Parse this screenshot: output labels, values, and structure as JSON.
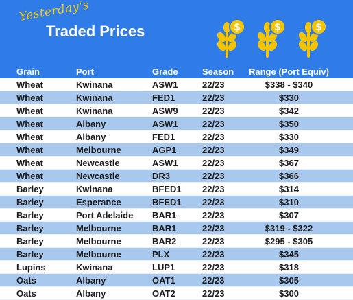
{
  "header": {
    "subtitle": "Yesterday's",
    "title": "Traded Prices",
    "icons": [
      "wheat-coin-icon",
      "wheat-coin-icon",
      "wheat-coin-icon"
    ]
  },
  "colors": {
    "header_blue": "#2f7be8",
    "row_alt": "#a9c8ee",
    "accent_yellow": "#f5c400"
  },
  "table": {
    "columns": [
      "Grain",
      "Port",
      "Grade",
      "Season",
      "Range (Port Equiv)"
    ],
    "rows": [
      [
        "Wheat",
        "Kwinana",
        "ASW1",
        "22/23",
        "$338 - $340"
      ],
      [
        "Wheat",
        "Kwinana",
        "FED1",
        "22/23",
        "$330"
      ],
      [
        "Wheat",
        "Kwinana",
        "ASW9",
        "22/23",
        "$342"
      ],
      [
        "Wheat",
        "Albany",
        "ASW1",
        "22/23",
        "$350"
      ],
      [
        "Wheat",
        "Albany",
        "FED1",
        "22/23",
        "$330"
      ],
      [
        "Wheat",
        "Melbourne",
        "AGP1",
        "22/23",
        "$349"
      ],
      [
        "Wheat",
        "Newcastle",
        "ASW1",
        "22/23",
        "$367"
      ],
      [
        "Wheat",
        "Newcastle",
        "DR3",
        "22/23",
        "$366"
      ],
      [
        "Barley",
        "Kwinana",
        "BFED1",
        "22/23",
        "$314"
      ],
      [
        "Barley",
        "Esperance",
        "BFED1",
        "22/23",
        "$310"
      ],
      [
        "Barley",
        "Port Adelaide",
        "BAR1",
        "22/23",
        "$307"
      ],
      [
        "Barley",
        "Melbourne",
        "BAR1",
        "22/23",
        "$319 - $322"
      ],
      [
        "Barley",
        "Melbourne",
        "BAR2",
        "22/23",
        "$295 - $305"
      ],
      [
        "Barley",
        "Melbourne",
        "PLX",
        "22/23",
        "$345"
      ],
      [
        "Lupins",
        "Kwinana",
        "LUP1",
        "22/23",
        "$318"
      ],
      [
        "Oats",
        "Albany",
        "OAT1",
        "22/23",
        "$305"
      ],
      [
        "Oats",
        "Albany",
        "OAT2",
        "22/23",
        "$300"
      ]
    ]
  }
}
